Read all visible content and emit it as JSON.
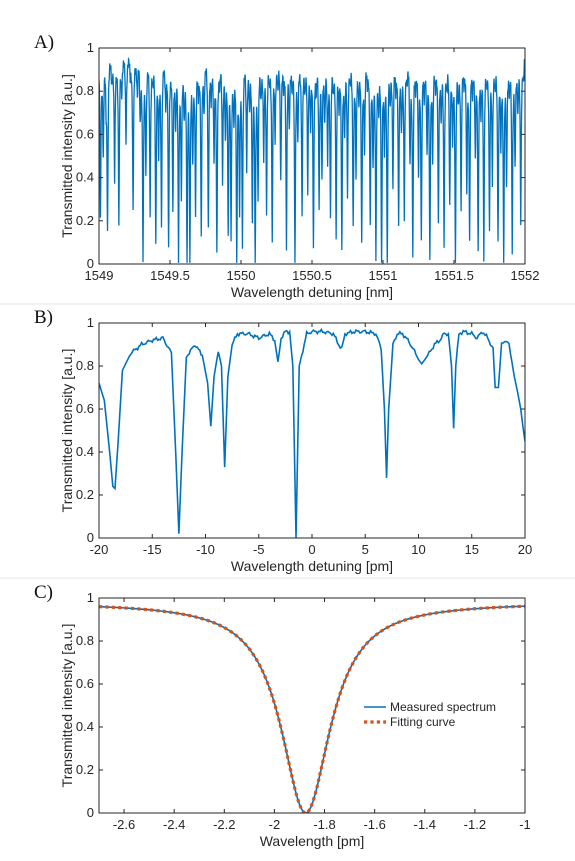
{
  "chart_data": [
    {
      "panel_label": "A)",
      "type": "line",
      "xlabel": "Wavelength detuning [nm]",
      "ylabel": "Transmitted intensity [a.u.]",
      "xlim": [
        1549,
        1552
      ],
      "ylim": [
        0,
        1
      ],
      "xticks": [
        "1549",
        "1549.5",
        "1550",
        "1550.5",
        "1551",
        "1551.5",
        "1552"
      ],
      "yticks": [
        "0",
        "0.2",
        "0.4",
        "0.6",
        "0.8",
        "1"
      ],
      "grid": false,
      "series": [
        {
          "color": "#0072BD",
          "description_of_values": "dense comb of resonance dips; baseline ~0.97",
          "baseline": 0.97,
          "dips": [
            [
              1549.01,
              0.21
            ],
            [
              1549.03,
              0.55
            ],
            [
              1549.05,
              0.8
            ],
            [
              1549.06,
              0.2
            ],
            [
              1549.09,
              0.88
            ],
            [
              1549.11,
              0.4
            ],
            [
              1549.14,
              0.2
            ],
            [
              1549.16,
              0.84
            ],
            [
              1549.19,
              0.6
            ],
            [
              1549.22,
              0.9
            ],
            [
              1549.24,
              0.26
            ],
            [
              1549.27,
              0.82
            ],
            [
              1549.29,
              0.7
            ],
            [
              1549.31,
              0.05
            ],
            [
              1549.33,
              0.5
            ],
            [
              1549.36,
              0.28
            ],
            [
              1549.38,
              0.88
            ],
            [
              1549.4,
              0.14
            ],
            [
              1549.42,
              0.56
            ],
            [
              1549.44,
              0.22
            ],
            [
              1549.47,
              0.79
            ],
            [
              1549.49,
              0.09
            ],
            [
              1549.52,
              0.26
            ],
            [
              1549.54,
              0.7
            ],
            [
              1549.56,
              0.08
            ],
            [
              1549.58,
              0.35
            ],
            [
              1549.6,
              0.75
            ],
            [
              1549.62,
              0.02
            ],
            [
              1549.64,
              0.1
            ],
            [
              1549.66,
              0.52
            ],
            [
              1549.68,
              0.27
            ],
            [
              1549.7,
              0.85
            ],
            [
              1549.72,
              0.14
            ],
            [
              1549.74,
              0.76
            ],
            [
              1549.77,
              0.2
            ],
            [
              1549.79,
              0.79
            ],
            [
              1549.81,
              0.55
            ],
            [
              1549.83,
              0.07
            ],
            [
              1549.85,
              0.88
            ],
            [
              1549.87,
              0.44
            ],
            [
              1549.89,
              0.62
            ],
            [
              1549.91,
              0.2
            ],
            [
              1549.93,
              0.18
            ],
            [
              1549.95,
              0.73
            ],
            [
              1549.97,
              0.04
            ],
            [
              1549.99,
              0.3
            ],
            [
              1550.01,
              0.16
            ],
            [
              1550.04,
              0.5
            ],
            [
              1550.06,
              0.75
            ],
            [
              1550.08,
              0.26
            ],
            [
              1550.1,
              0.03
            ],
            [
              1550.12,
              0.36
            ],
            [
              1550.14,
              0.82
            ],
            [
              1550.16,
              0.52
            ],
            [
              1550.18,
              0.3
            ],
            [
              1550.2,
              0.88
            ],
            [
              1550.22,
              0.14
            ],
            [
              1550.24,
              0.63
            ],
            [
              1550.26,
              0.85
            ],
            [
              1550.28,
              0.42
            ],
            [
              1550.3,
              0.85
            ],
            [
              1550.32,
              0.12
            ],
            [
              1550.34,
              0.66
            ],
            [
              1550.36,
              0.86
            ],
            [
              1550.38,
              0.04
            ],
            [
              1550.4,
              0.6
            ],
            [
              1550.43,
              0.24
            ],
            [
              1550.45,
              0.86
            ],
            [
              1550.47,
              0.36
            ],
            [
              1550.49,
              0.7
            ],
            [
              1550.51,
              0.09
            ],
            [
              1550.53,
              0.85
            ],
            [
              1550.55,
              0.33
            ],
            [
              1550.57,
              0.42
            ],
            [
              1550.59,
              0.72
            ],
            [
              1550.61,
              0.52
            ],
            [
              1550.63,
              0.26
            ],
            [
              1550.65,
              0.86
            ],
            [
              1550.67,
              0.15
            ],
            [
              1550.69,
              0.8
            ],
            [
              1550.71,
              0.08
            ],
            [
              1550.73,
              0.66
            ],
            [
              1550.75,
              0.37
            ],
            [
              1550.77,
              0.89
            ],
            [
              1550.79,
              0.22
            ],
            [
              1550.81,
              0.45
            ],
            [
              1550.83,
              0.82
            ],
            [
              1550.85,
              0.12
            ],
            [
              1550.87,
              0.56
            ],
            [
              1550.89,
              0.9
            ],
            [
              1550.91,
              0.2
            ],
            [
              1550.93,
              0.53
            ],
            [
              1550.95,
              0.08
            ],
            [
              1550.97,
              0.77
            ],
            [
              1550.99,
              0.03
            ],
            [
              1551.01,
              0.58
            ],
            [
              1551.03,
              0.05
            ],
            [
              1551.05,
              0.78
            ],
            [
              1551.07,
              0.39
            ],
            [
              1551.09,
              0.86
            ],
            [
              1551.11,
              0.2
            ],
            [
              1551.13,
              0.68
            ],
            [
              1551.15,
              0.24
            ],
            [
              1551.17,
              0.91
            ],
            [
              1551.19,
              0.5
            ],
            [
              1551.21,
              0.07
            ],
            [
              1551.23,
              0.88
            ],
            [
              1551.25,
              0.43
            ],
            [
              1551.27,
              0.16
            ],
            [
              1551.29,
              0.82
            ],
            [
              1551.31,
              0.57
            ],
            [
              1551.33,
              0.06
            ],
            [
              1551.35,
              0.52
            ],
            [
              1551.37,
              0.88
            ],
            [
              1551.39,
              0.2
            ],
            [
              1551.41,
              0.73
            ],
            [
              1551.43,
              0.14
            ],
            [
              1551.45,
              0.86
            ],
            [
              1551.47,
              0.32
            ],
            [
              1551.49,
              0.62
            ],
            [
              1551.51,
              0.05
            ],
            [
              1551.53,
              0.8
            ],
            [
              1551.55,
              0.28
            ],
            [
              1551.57,
              0.9
            ],
            [
              1551.59,
              0.35
            ],
            [
              1551.61,
              0.16
            ],
            [
              1551.63,
              0.84
            ],
            [
              1551.65,
              0.55
            ],
            [
              1551.67,
              0.1
            ],
            [
              1551.69,
              0.74
            ],
            [
              1551.71,
              0.08
            ],
            [
              1551.73,
              0.88
            ],
            [
              1551.75,
              0.2
            ],
            [
              1551.77,
              0.44
            ],
            [
              1551.79,
              0.86
            ],
            [
              1551.81,
              0.15
            ],
            [
              1551.83,
              0.6
            ],
            [
              1551.85,
              0.06
            ],
            [
              1551.87,
              0.4
            ],
            [
              1551.89,
              0.84
            ],
            [
              1551.91,
              0.12
            ],
            [
              1551.93,
              0.48
            ],
            [
              1551.95,
              0.76
            ],
            [
              1551.97,
              0.22
            ],
            [
              1551.99,
              0.88
            ]
          ]
        }
      ]
    },
    {
      "panel_label": "B)",
      "type": "line",
      "xlabel": "Wavelength detuning [pm]",
      "ylabel": "Transmitted intensity [a.u.]",
      "xlim": [
        -20,
        20
      ],
      "ylim": [
        0,
        1
      ],
      "xticks": [
        "-20",
        "-15",
        "-10",
        "-5",
        "0",
        "5",
        "10",
        "15",
        "20"
      ],
      "yticks": [
        "0",
        "0.2",
        "0.4",
        "0.6",
        "0.8",
        "1"
      ],
      "grid": false,
      "series": [
        {
          "color": "#0072BD",
          "x": [
            -20,
            -19.5,
            -19,
            -18.7,
            -18.5,
            -18.2,
            -17.8,
            -17,
            -16,
            -15,
            -14,
            -13.2,
            -12.8,
            -12.5,
            -12.2,
            -11.8,
            -11,
            -10.3,
            -9.8,
            -9.5,
            -9.2,
            -8.8,
            -8.5,
            -8.2,
            -7.9,
            -7.5,
            -7,
            -6,
            -5,
            -4,
            -3.5,
            -3.2,
            -2.9,
            -2.5,
            -2.1,
            -1.8,
            -1.5,
            -1.2,
            -0.5,
            0,
            1,
            2,
            2.5,
            2.8,
            3.1,
            4,
            5,
            6,
            6.5,
            6.8,
            7,
            7.2,
            7.6,
            8,
            8.5,
            9,
            9.5,
            10,
            10.3,
            10.6,
            11,
            11.5,
            12,
            12.4,
            12.8,
            13.1,
            13.3,
            13.5,
            13.8,
            14.2,
            15,
            15.5,
            16,
            16.5,
            17,
            17.2,
            17.5,
            17.8,
            18.1,
            18.5,
            19,
            19.3,
            19.6,
            19.8,
            20
          ],
          "y": [
            0.72,
            0.64,
            0.4,
            0.24,
            0.23,
            0.45,
            0.78,
            0.86,
            0.9,
            0.92,
            0.93,
            0.86,
            0.4,
            0.02,
            0.4,
            0.84,
            0.9,
            0.85,
            0.72,
            0.52,
            0.75,
            0.87,
            0.8,
            0.33,
            0.75,
            0.9,
            0.95,
            0.95,
            0.93,
            0.95,
            0.92,
            0.82,
            0.93,
            0.96,
            0.96,
            0.8,
            0.0,
            0.8,
            0.95,
            0.96,
            0.96,
            0.95,
            0.9,
            0.88,
            0.95,
            0.96,
            0.96,
            0.95,
            0.88,
            0.6,
            0.28,
            0.6,
            0.9,
            0.95,
            0.95,
            0.92,
            0.88,
            0.83,
            0.81,
            0.83,
            0.86,
            0.9,
            0.92,
            0.95,
            0.95,
            0.8,
            0.51,
            0.8,
            0.95,
            0.96,
            0.95,
            0.93,
            0.96,
            0.93,
            0.88,
            0.7,
            0.7,
            0.9,
            0.92,
            0.9,
            0.75,
            0.68,
            0.6,
            0.52,
            0.45
          ]
        }
      ]
    },
    {
      "panel_label": "C)",
      "type": "line",
      "xlabel": "Wavelength [pm]",
      "ylabel": "Transmitted intensity [a.u.]",
      "xlim": [
        -2.7,
        -1
      ],
      "ylim": [
        0,
        1
      ],
      "xticks": [
        "-2.6",
        "-2.4",
        "-2.2",
        "-2",
        "-1.8",
        "-1.6",
        "-1.4",
        "-1.2",
        "-1"
      ],
      "yticks": [
        "0",
        "0.2",
        "0.4",
        "0.6",
        "0.8",
        "1"
      ],
      "grid": false,
      "legend": {
        "position": "right",
        "entries": [
          "Measured spectrum",
          "Fitting curve"
        ]
      },
      "lorentzian": {
        "center": -1.875,
        "hwhm": 0.12,
        "baseline": 0.98
      },
      "series": [
        {
          "name": "Measured spectrum",
          "color": "#0072BD",
          "style": "solid"
        },
        {
          "name": "Fitting curve",
          "color": "#D95319",
          "style": "dotted"
        }
      ]
    }
  ]
}
